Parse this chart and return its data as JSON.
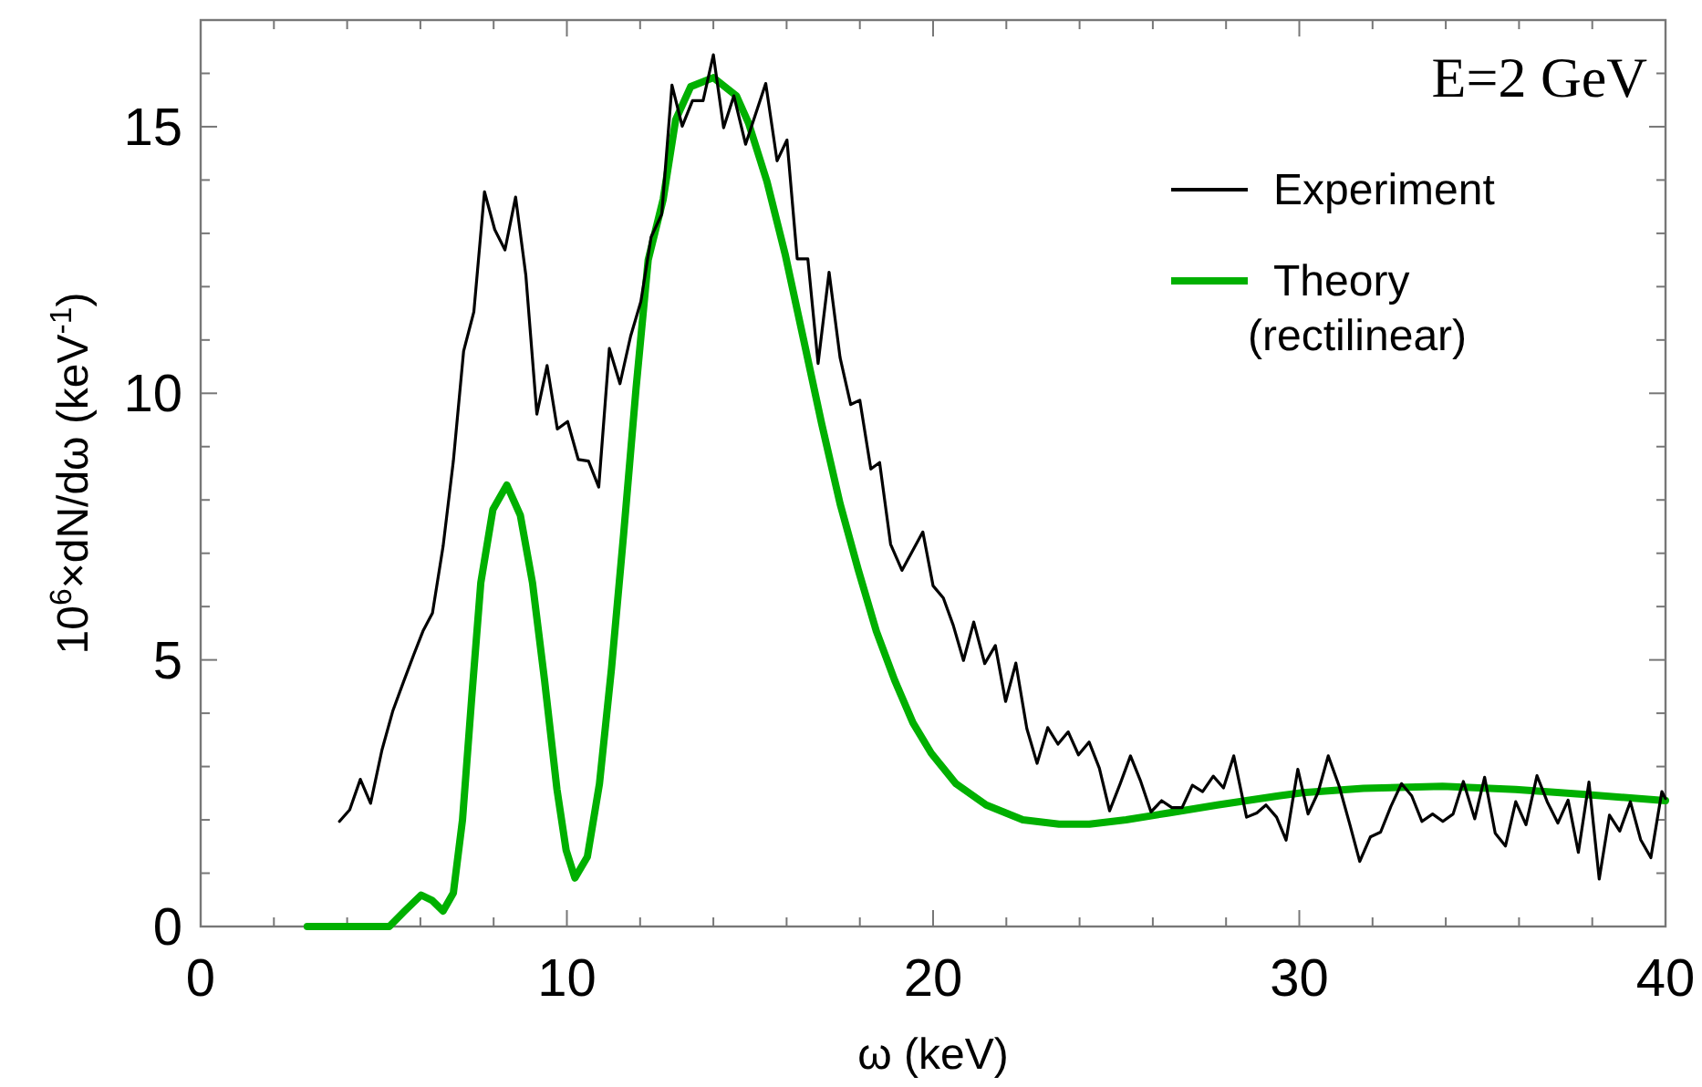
{
  "chart_data": {
    "type": "line",
    "xlabel": "ω (keV)",
    "ylabel": "10$^{6}$×dN/dω (keV$^{-1}$)",
    "annotations": [
      "E=2 GeV"
    ],
    "xlim": [
      0,
      40
    ],
    "ylim": [
      0,
      17
    ],
    "xticks": [
      0,
      {
        "value": 2,
        "label": null
      },
      {
        "value": 4,
        "label": null
      },
      {
        "value": 6,
        "label": null
      },
      {
        "value": 8,
        "label": null
      },
      10,
      {
        "value": 12,
        "label": null
      },
      {
        "value": 14,
        "label": null
      },
      {
        "value": 16,
        "label": null
      },
      {
        "value": 18,
        "label": null
      },
      20,
      {
        "value": 22,
        "label": null
      },
      {
        "value": 24,
        "label": null
      },
      {
        "value": 26,
        "label": null
      },
      {
        "value": 28,
        "label": null
      },
      30,
      {
        "value": 32,
        "label": null
      },
      {
        "value": 34,
        "label": null
      },
      {
        "value": 36,
        "label": null
      },
      {
        "value": 38,
        "label": null
      },
      40
    ],
    "yticks": [
      0,
      {
        "value": 1,
        "label": null
      },
      {
        "value": 2,
        "label": null
      },
      {
        "value": 3,
        "label": null
      },
      {
        "value": 4,
        "label": null
      },
      5,
      {
        "value": 6,
        "label": null
      },
      {
        "value": 7,
        "label": null
      },
      {
        "value": 8,
        "label": null
      },
      {
        "value": 9,
        "label": null
      },
      10,
      {
        "value": 11,
        "label": null
      },
      {
        "value": 12,
        "label": null
      },
      {
        "value": 13,
        "label": null
      },
      {
        "value": 14,
        "label": null
      },
      15,
      {
        "value": 16,
        "label": null
      },
      {
        "value": 17,
        "label": null
      }
    ],
    "grid": false,
    "legend": "top right",
    "marker": "none",
    "series": [
      {
        "name": "Experiment",
        "color": "#000000",
        "line_style": "solid",
        "x": [
          3.79,
          4.07,
          4.36,
          4.64,
          4.95,
          5.25,
          5.54,
          5.82,
          6.07,
          6.33,
          6.62,
          6.9,
          7.18,
          7.46,
          7.75,
          8.03,
          8.31,
          8.6,
          8.88,
          9.18,
          9.46,
          9.74,
          10.02,
          10.31,
          10.59,
          10.87,
          11.16,
          11.45,
          11.74,
          12.02,
          12.3,
          12.59,
          12.87,
          13.15,
          13.43,
          13.72,
          14.0,
          14.28,
          14.56,
          14.88,
          15.43,
          15.74,
          16.01,
          16.29,
          16.58,
          16.86,
          17.16,
          17.46,
          17.75,
          18.0,
          18.3,
          18.54,
          18.84,
          19.15,
          19.72,
          20.0,
          20.28,
          20.55,
          20.83,
          21.11,
          21.41,
          21.7,
          21.98,
          22.26,
          22.56,
          22.84,
          23.13,
          23.41,
          23.69,
          23.97,
          24.26,
          24.54,
          24.82,
          25.11,
          25.39,
          25.67,
          25.95,
          26.24,
          26.52,
          26.8,
          27.08,
          27.36,
          27.65,
          27.93,
          28.21,
          28.56,
          28.84,
          29.09,
          29.38,
          29.64,
          29.96,
          30.24,
          30.51,
          30.79,
          31.09,
          31.37,
          31.65,
          31.94,
          32.22,
          32.5,
          32.79,
          33.07,
          33.35,
          33.64,
          33.92,
          34.2,
          34.48,
          34.79,
          35.06,
          35.35,
          35.63,
          35.91,
          36.19,
          36.49,
          36.77,
          37.06,
          37.34,
          37.62,
          37.91,
          38.19,
          38.47,
          38.75,
          39.04,
          39.32,
          39.6,
          39.9,
          40.0
        ],
        "values": [
          1.97,
          2.19,
          2.76,
          2.31,
          3.31,
          4.05,
          4.59,
          5.1,
          5.54,
          5.88,
          7.13,
          8.73,
          10.79,
          11.53,
          13.78,
          13.07,
          12.69,
          13.68,
          12.21,
          9.61,
          10.52,
          9.33,
          9.47,
          8.76,
          8.73,
          8.24,
          10.84,
          10.18,
          11.07,
          11.72,
          12.93,
          13.36,
          15.78,
          15.01,
          15.49,
          15.49,
          16.35,
          14.98,
          15.58,
          14.67,
          15.81,
          14.36,
          14.75,
          12.52,
          12.52,
          10.56,
          12.27,
          10.67,
          9.79,
          9.87,
          8.58,
          8.7,
          7.17,
          6.68,
          7.4,
          6.39,
          6.16,
          5.65,
          4.99,
          5.71,
          4.93,
          5.27,
          4.22,
          4.94,
          3.71,
          3.06,
          3.73,
          3.42,
          3.65,
          3.22,
          3.46,
          2.97,
          2.17,
          2.68,
          3.2,
          2.72,
          2.15,
          2.36,
          2.23,
          2.23,
          2.65,
          2.53,
          2.82,
          2.6,
          3.2,
          2.05,
          2.13,
          2.28,
          2.05,
          1.62,
          2.95,
          2.11,
          2.51,
          3.2,
          2.63,
          1.94,
          1.22,
          1.68,
          1.77,
          2.25,
          2.68,
          2.45,
          1.97,
          2.11,
          1.97,
          2.11,
          2.72,
          2.02,
          2.8,
          1.75,
          1.51,
          2.34,
          1.91,
          2.83,
          2.34,
          1.94,
          2.37,
          1.39,
          2.71,
          0.89,
          2.09,
          1.79,
          2.34,
          1.63,
          1.29,
          2.53,
          2.4
        ]
      },
      {
        "name": "Theory (rectilinear)",
        "color": "#00b000",
        "line_style": "solid",
        "x": [
          2.91,
          5.15,
          5.57,
          6.02,
          6.32,
          6.62,
          6.9,
          7.15,
          7.4,
          7.65,
          7.98,
          8.36,
          8.73,
          9.06,
          9.39,
          9.73,
          9.98,
          10.22,
          10.56,
          10.89,
          11.22,
          11.55,
          11.89,
          12.22,
          12.63,
          12.97,
          13.38,
          14.0,
          14.63,
          14.96,
          15.46,
          15.96,
          16.46,
          16.96,
          17.46,
          17.96,
          18.45,
          18.95,
          19.45,
          19.95,
          20.62,
          21.45,
          22.45,
          23.44,
          24.27,
          25.27,
          26.43,
          27.76,
          29.43,
          30.09,
          31.75,
          33.91,
          35.91,
          37.74,
          40.0
        ],
        "values": [
          0,
          0,
          0.29,
          0.59,
          0.49,
          0.29,
          0.63,
          2.0,
          4.28,
          6.45,
          7.82,
          8.28,
          7.71,
          6.45,
          4.62,
          2.57,
          1.43,
          0.91,
          1.31,
          2.68,
          4.85,
          7.36,
          10.1,
          12.5,
          13.64,
          15.13,
          15.75,
          15.92,
          15.58,
          15.07,
          13.98,
          12.61,
          11.02,
          9.42,
          7.93,
          6.68,
          5.54,
          4.62,
          3.82,
          3.25,
          2.68,
          2.28,
          2.0,
          1.92,
          1.92,
          2.0,
          2.13,
          2.28,
          2.45,
          2.51,
          2.59,
          2.63,
          2.57,
          2.48,
          2.36
        ]
      }
    ]
  }
}
